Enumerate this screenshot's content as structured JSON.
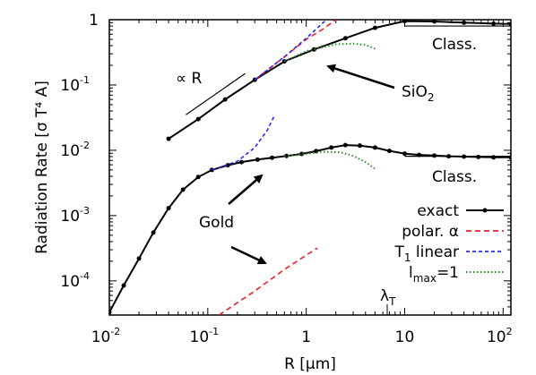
{
  "chart_data": {
    "type": "line",
    "xlabel": "R [μm]",
    "ylabel": "Radiation Rate [σ T⁴ A]",
    "x_scale": "log",
    "y_scale": "log",
    "xlim": [
      0.01,
      120
    ],
    "ylim": [
      3e-05,
      1
    ],
    "x_ticks": [
      {
        "v": 0.01,
        "base": "10",
        "exp": "-2"
      },
      {
        "v": 0.1,
        "base": "10",
        "exp": "-1"
      },
      {
        "v": 1,
        "base": "1",
        "exp": ""
      },
      {
        "v": 10,
        "base": "10",
        "exp": ""
      },
      {
        "v": 100,
        "base": "10",
        "exp": "2"
      }
    ],
    "y_ticks": [
      {
        "v": 1,
        "base": "1",
        "exp": ""
      },
      {
        "v": 0.1,
        "base": "10",
        "exp": "-1"
      },
      {
        "v": 0.01,
        "base": "10",
        "exp": "-2"
      },
      {
        "v": 0.001,
        "base": "10",
        "exp": "-3"
      },
      {
        "v": 0.0001,
        "base": "10",
        "exp": "-4"
      }
    ],
    "series": [
      {
        "name": "exact",
        "group": "SiO2",
        "color": "#000000",
        "style": "solid-points",
        "x": [
          0.04,
          0.08,
          0.15,
          0.3,
          0.6,
          1.2,
          2.5,
          5,
          10,
          20,
          40,
          80,
          120
        ],
        "y": [
          0.015,
          0.03,
          0.06,
          0.12,
          0.23,
          0.35,
          0.52,
          0.75,
          0.95,
          0.94,
          0.9,
          0.87,
          0.86
        ]
      },
      {
        "name": "exact",
        "group": "Gold",
        "color": "#000000",
        "style": "solid-points",
        "x": [
          0.01,
          0.014,
          0.02,
          0.028,
          0.04,
          0.056,
          0.08,
          0.11,
          0.16,
          0.22,
          0.32,
          0.45,
          0.63,
          0.9,
          1.26,
          1.8,
          2.5,
          3.5,
          5,
          7,
          10,
          14,
          20,
          28,
          40,
          56,
          80,
          120
        ],
        "y": [
          3.3e-05,
          8.5e-05,
          0.00022,
          0.00055,
          0.0013,
          0.0025,
          0.0039,
          0.005,
          0.0059,
          0.0066,
          0.0072,
          0.0077,
          0.0082,
          0.0088,
          0.0097,
          0.011,
          0.012,
          0.0118,
          0.011,
          0.0098,
          0.0089,
          0.0085,
          0.0083,
          0.0081,
          0.008,
          0.0079,
          0.0078,
          0.0078
        ]
      },
      {
        "name": "polar. α",
        "group": "SiO2",
        "color": "#e8212a",
        "style": "dashed",
        "x": [
          0.3,
          0.6,
          1,
          1.5,
          2
        ],
        "y": [
          0.12,
          0.27,
          0.5,
          0.73,
          1.0
        ]
      },
      {
        "name": "polar. α",
        "group": "Gold",
        "color": "#e8212a",
        "style": "dashed",
        "x": [
          0.13,
          0.3,
          0.6,
          1.3
        ],
        "y": [
          3e-05,
          7e-05,
          0.00015,
          0.00032
        ]
      },
      {
        "name": "T₁ linear",
        "group": "SiO2",
        "color": "#2a2ae6",
        "style": "dashed",
        "x": [
          0.3,
          0.6,
          1,
          1.3,
          1.6
        ],
        "y": [
          0.12,
          0.27,
          0.52,
          0.75,
          1.0
        ]
      },
      {
        "name": "T₁ linear",
        "group": "Gold",
        "color": "#2a2ae6",
        "style": "dashed",
        "x": [
          0.11,
          0.2,
          0.3,
          0.4,
          0.48
        ],
        "y": [
          0.005,
          0.0068,
          0.011,
          0.02,
          0.035
        ]
      },
      {
        "name": "lmax=1",
        "group": "SiO2",
        "color": "#2f8a2f",
        "style": "dotted",
        "x": [
          0.6,
          1,
          2,
          3,
          4,
          5
        ],
        "y": [
          0.23,
          0.33,
          0.42,
          0.43,
          0.41,
          0.36
        ]
      },
      {
        "name": "lmax=1",
        "group": "Gold",
        "color": "#2f8a2f",
        "style": "dotted",
        "x": [
          0.6,
          1,
          1.5,
          2.2,
          3,
          4,
          5
        ],
        "y": [
          0.0081,
          0.0088,
          0.0095,
          0.0093,
          0.0082,
          0.0066,
          0.0052
        ]
      }
    ],
    "reference_lines": [
      {
        "label": "∝ R",
        "x": [
          0.06,
          0.24
        ],
        "y": [
          0.035,
          0.15
        ]
      },
      {
        "label": "Class.",
        "x": [
          10,
          120
        ],
        "y": [
          0.8,
          0.8
        ]
      },
      {
        "label": "Class.",
        "x": [
          10,
          120
        ],
        "y": [
          0.0081,
          0.0081
        ]
      }
    ],
    "annotations": [
      {
        "text": "SiO",
        "sub": "2"
      },
      {
        "text": "Gold"
      },
      {
        "text": "λ",
        "sub": "T"
      },
      {
        "text": "∝ R"
      },
      {
        "text": "Class."
      },
      {
        "text": "Class."
      }
    ],
    "legend": {
      "placement": "bottom-right",
      "entries": [
        {
          "main": "exact",
          "sub": "",
          "rest": ""
        },
        {
          "main": "polar. α",
          "sub": "",
          "rest": ""
        },
        {
          "main": "T",
          "sub": "1",
          "rest": " linear"
        },
        {
          "main": "l",
          "sub": "max",
          "rest": "=1"
        }
      ]
    }
  }
}
